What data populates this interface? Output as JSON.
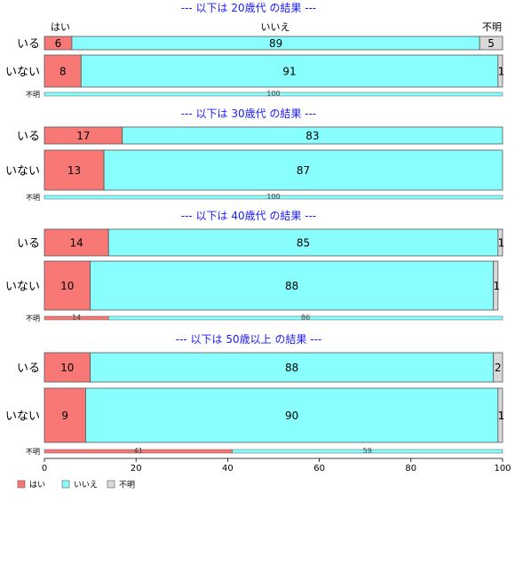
{
  "colors": {
    "yes": "#f87876",
    "no": "#88fefe",
    "unknown": "#d9d9d9",
    "title": "#1a1aff"
  },
  "legend": [
    {
      "key": "yes",
      "label": "はい"
    },
    {
      "key": "no",
      "label": "いいえ"
    },
    {
      "key": "unknown",
      "label": "不明"
    }
  ],
  "top_category_labels": {
    "yes": "はい",
    "no": "いいえ",
    "unknown": "不明"
  },
  "chart_data": {
    "type": "bar",
    "orientation": "horizontal-stacked-percent",
    "xlim": [
      0,
      100
    ],
    "xticks": [
      0,
      20,
      40,
      60,
      80,
      100
    ],
    "legend_position": "bottom-left",
    "panels": [
      {
        "title": "--- 以下は 20歳代 の結果 ---",
        "rows": [
          {
            "label": "いる",
            "values": [
              6,
              89,
              5
            ],
            "labels": [
              "6",
              "89",
              "5"
            ]
          },
          {
            "label": "いない",
            "values": [
              8,
              91,
              1
            ],
            "labels": [
              "8",
              "91",
              "1"
            ]
          },
          {
            "label": "不明",
            "values": [
              0,
              100,
              0
            ],
            "labels": [
              "",
              "100",
              ""
            ]
          }
        ]
      },
      {
        "title": "--- 以下は 30歳代 の結果 ---",
        "rows": [
          {
            "label": "いる",
            "values": [
              17,
              83,
              0
            ],
            "labels": [
              "17",
              "83",
              ""
            ]
          },
          {
            "label": "いない",
            "values": [
              13,
              87,
              0
            ],
            "labels": [
              "13",
              "87",
              ""
            ]
          },
          {
            "label": "不明",
            "values": [
              0,
              100,
              0
            ],
            "labels": [
              "",
              "100",
              ""
            ]
          }
        ]
      },
      {
        "title": "--- 以下は 40歳代 の結果 ---",
        "rows": [
          {
            "label": "いる",
            "values": [
              14,
              85,
              1
            ],
            "labels": [
              "14",
              "85",
              "1"
            ]
          },
          {
            "label": "いない",
            "values": [
              10,
              88,
              1
            ],
            "labels": [
              "10",
              "88",
              "1"
            ]
          },
          {
            "label": "不明",
            "values": [
              14,
              86,
              0
            ],
            "labels": [
              "14",
              "86",
              ""
            ]
          }
        ]
      },
      {
        "title": "--- 以下は 50歳以上 の結果 ---",
        "rows": [
          {
            "label": "いる",
            "values": [
              10,
              88,
              2
            ],
            "labels": [
              "10",
              "88",
              "2"
            ]
          },
          {
            "label": "いない",
            "values": [
              9,
              90,
              1
            ],
            "labels": [
              "9",
              "90",
              "1"
            ]
          },
          {
            "label": "不明",
            "values": [
              41,
              59,
              0
            ],
            "labels": [
              "41",
              "59",
              ""
            ]
          }
        ]
      }
    ]
  }
}
